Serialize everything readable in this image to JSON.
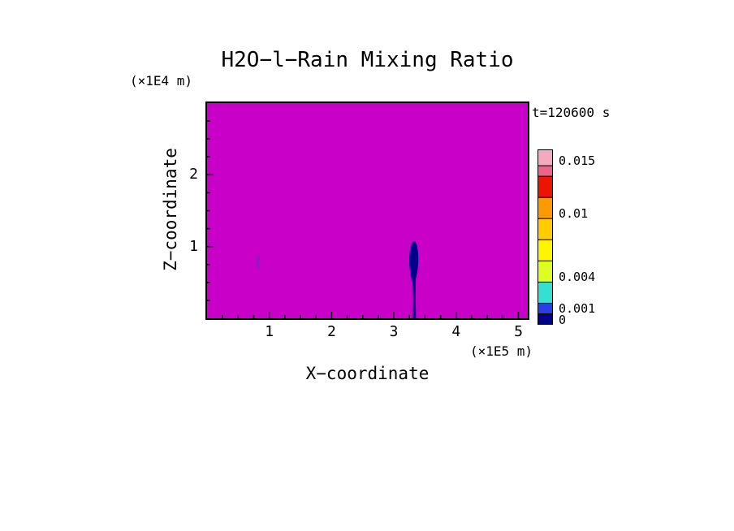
{
  "chart_data": {
    "type": "heatmap",
    "title": "H2O−l−Rain Mixing Ratio",
    "xlabel": "X−coordinate",
    "ylabel": "Z−coordinate",
    "x_unit_label": "(×1E5 m)",
    "z_unit_label": "(×1E4 m)",
    "time_label": "t=120600 s",
    "xlim": [
      0,
      5.15
    ],
    "zlim": [
      0,
      3.0
    ],
    "x_ticks": [
      1,
      2,
      3,
      4,
      5
    ],
    "z_ticks": [
      1,
      2
    ],
    "x_minor_step": 0.25,
    "z_minor_step": 0.25,
    "field_background_color": "#C800C8",
    "axis_color": "#000000",
    "colorbar": {
      "levels": [
        0,
        0.001,
        0.002,
        0.004,
        0.006,
        0.008,
        0.01,
        0.012,
        0.014,
        0.015,
        0.0165
      ],
      "colors": [
        "#00008B",
        "#2A3FE0",
        "#35E0D2",
        "#DCFF21",
        "#FFF500",
        "#FFCC00",
        "#FF9900",
        "#EE1500",
        "#EE6488",
        "#F2AABE"
      ],
      "labels": [
        {
          "value": 0.015,
          "text": "0.015"
        },
        {
          "value": 0.01,
          "text": "0.01"
        },
        {
          "value": 0.004,
          "text": "0.004"
        },
        {
          "value": 0.001,
          "text": "0.001"
        },
        {
          "value": 0,
          "text": "0"
        }
      ]
    },
    "features": [
      {
        "name": "rain-plume",
        "kind": "polygon",
        "color": "#00008B",
        "points": [
          [
            3.305,
            0
          ],
          [
            3.31,
            0.28
          ],
          [
            3.3,
            0.5
          ],
          [
            3.268,
            0.6
          ],
          [
            3.248,
            0.74
          ],
          [
            3.25,
            0.9
          ],
          [
            3.272,
            1.01
          ],
          [
            3.305,
            1.07
          ],
          [
            3.34,
            1.075
          ],
          [
            3.37,
            1.02
          ],
          [
            3.39,
            0.92
          ],
          [
            3.393,
            0.78
          ],
          [
            3.378,
            0.65
          ],
          [
            3.352,
            0.55
          ],
          [
            3.348,
            0.3
          ],
          [
            3.356,
            0
          ]
        ]
      },
      {
        "name": "faint-streak",
        "kind": "rect",
        "color": "#5533BB",
        "opacity": 0.55,
        "x": [
          0.8,
          0.835
        ],
        "z": [
          0.7,
          0.87
        ]
      }
    ]
  }
}
